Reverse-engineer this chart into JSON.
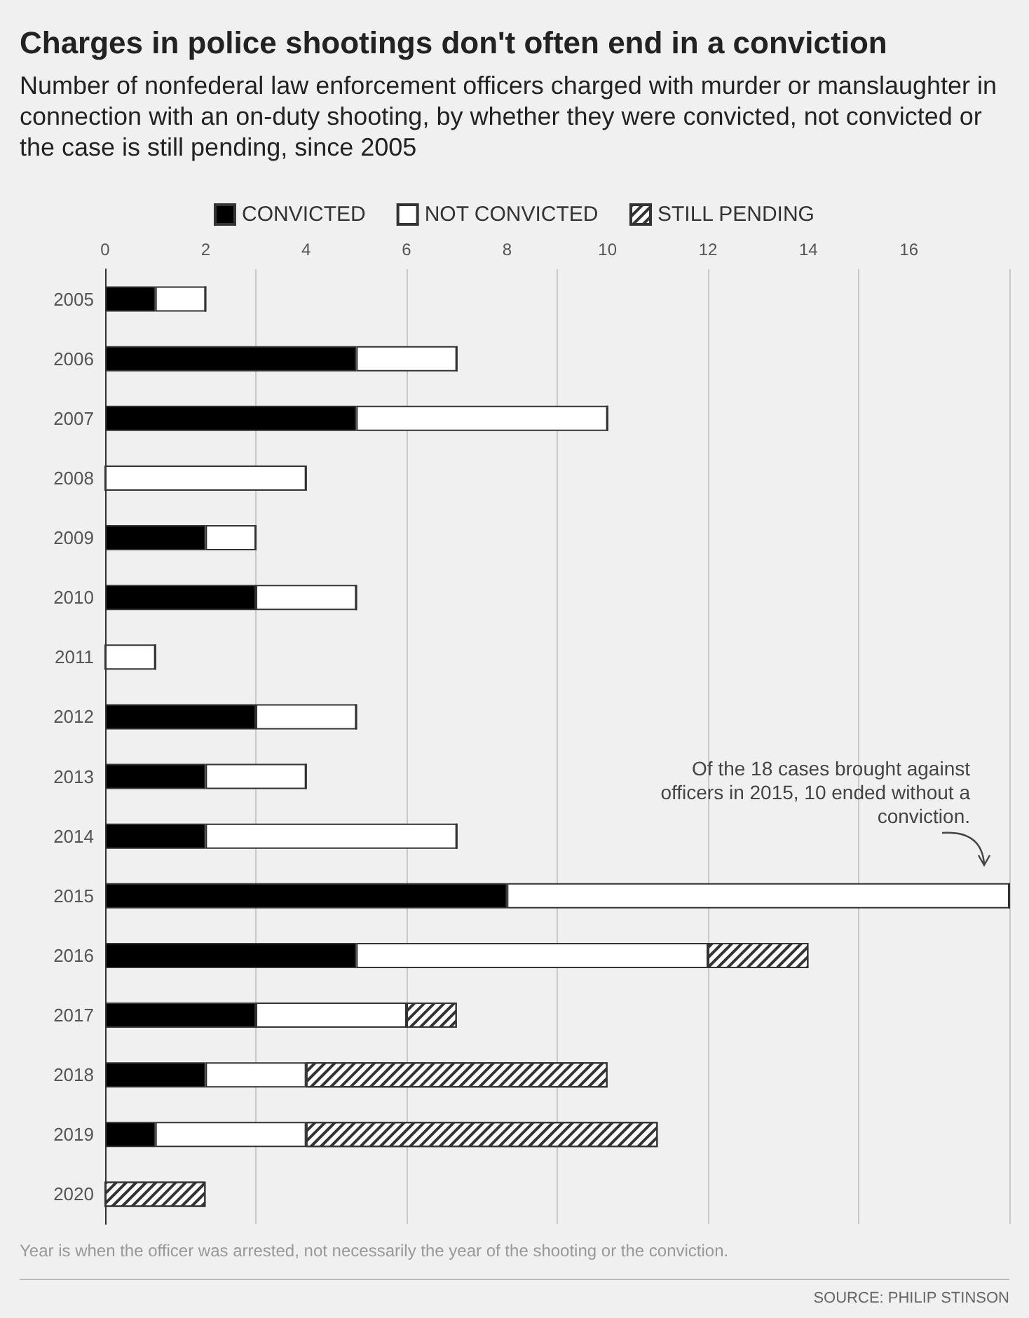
{
  "chart_data": {
    "type": "bar",
    "orientation": "horizontal",
    "stacked": true,
    "title": "Charges in police shootings don't often end in a conviction",
    "subtitle": "Number of nonfederal law enforcement officers charged with murder or manslaughter in connection with an on-duty shooting, by whether they were convicted, not convicted or the case is still pending, since 2005",
    "categories": [
      "2005",
      "2006",
      "2007",
      "2008",
      "2009",
      "2010",
      "2011",
      "2012",
      "2013",
      "2014",
      "2015",
      "2016",
      "2017",
      "2018",
      "2019",
      "2020"
    ],
    "series": [
      {
        "name": "CONVICTED",
        "color": "#000000",
        "values": [
          1,
          5,
          5,
          0,
          2,
          3,
          0,
          3,
          2,
          2,
          8,
          5,
          3,
          2,
          1,
          0
        ]
      },
      {
        "name": "NOT CONVICTED",
        "color": "#ffffff",
        "values": [
          1,
          2,
          5,
          4,
          1,
          2,
          1,
          2,
          2,
          5,
          10,
          7,
          3,
          2,
          3,
          0
        ]
      },
      {
        "name": "STILL PENDING",
        "color": "#333333",
        "values": [
          0,
          0,
          0,
          0,
          0,
          0,
          0,
          0,
          0,
          0,
          0,
          2,
          1,
          6,
          7,
          2
        ]
      }
    ],
    "xlim": [
      0,
      18
    ],
    "xticks": [
      0,
      2,
      4,
      6,
      8,
      10,
      12,
      14,
      16
    ],
    "grid": "x",
    "legend": "top",
    "annotations": [
      "Of the 18 cases brought against officers in 2015, 10 ended without a conviction.",
      "Year is when the officer was arrested, not necessarily the year of the shooting or the conviction.",
      "SOURCE: PHILIP STINSON"
    ]
  }
}
